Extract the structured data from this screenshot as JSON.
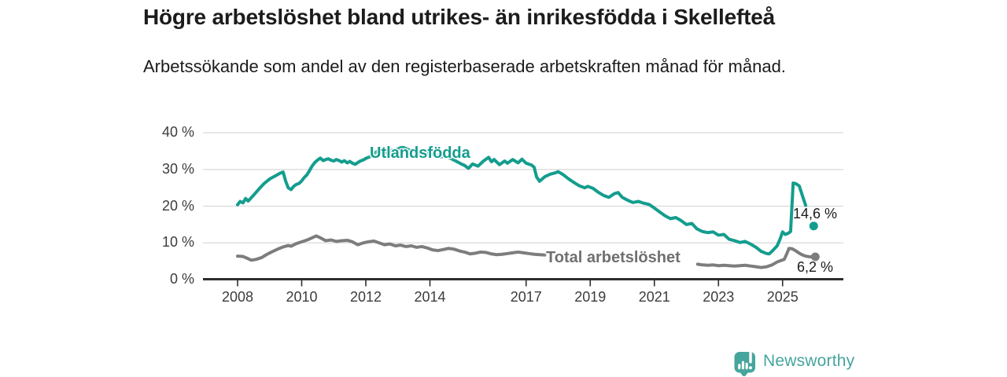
{
  "header": {
    "title": "Högre arbetslöshet bland utrikes- än inrikesfödda i Skellefteå",
    "subtitle": "Arbetssökande som andel av den registerbaserade arbetskraften månad för månad."
  },
  "chart_data": {
    "type": "line",
    "unit": "%",
    "ylim": [
      0,
      40
    ],
    "xlim": [
      2006.9,
      2026.9
    ],
    "grid": "horizontal",
    "legend_position": "inline-labels",
    "y_ticks": [
      {
        "value": 0,
        "label": "0 %"
      },
      {
        "value": 10,
        "label": "10 %"
      },
      {
        "value": 20,
        "label": "20 %"
      },
      {
        "value": 30,
        "label": "30 %"
      },
      {
        "value": 40,
        "label": "40 %"
      }
    ],
    "x_ticks": [
      {
        "value": 2008,
        "label": "2008"
      },
      {
        "value": 2010,
        "label": "2010"
      },
      {
        "value": 2012,
        "label": "2012"
      },
      {
        "value": 2014,
        "label": "2014"
      },
      {
        "value": 2017,
        "label": "2017"
      },
      {
        "value": 2019,
        "label": "2019"
      },
      {
        "value": 2021,
        "label": "2021"
      },
      {
        "value": 2023,
        "label": "2023"
      },
      {
        "value": 2025,
        "label": "2025"
      }
    ],
    "series": [
      {
        "name": "Utlandsfödda",
        "color": "#149d8e",
        "label_color": "#149d8e",
        "end_label": "14,6 %",
        "end_dot": {
          "x": 2025.97,
          "value": 14.6
        },
        "segments": [
          [
            [
              2008.0,
              20.4
            ],
            [
              2008.08,
              21.3
            ],
            [
              2008.17,
              20.9
            ],
            [
              2008.25,
              22.1
            ],
            [
              2008.33,
              21.4
            ],
            [
              2008.5,
              23.0
            ],
            [
              2008.67,
              24.7
            ],
            [
              2008.83,
              26.2
            ],
            [
              2009.0,
              27.4
            ],
            [
              2009.17,
              28.2
            ],
            [
              2009.33,
              29.0
            ],
            [
              2009.42,
              29.3
            ],
            [
              2009.5,
              26.8
            ],
            [
              2009.58,
              25.0
            ],
            [
              2009.67,
              24.5
            ],
            [
              2009.75,
              25.4
            ],
            [
              2009.83,
              25.9
            ],
            [
              2009.92,
              26.2
            ],
            [
              2010.0,
              26.9
            ],
            [
              2010.08,
              27.8
            ],
            [
              2010.17,
              28.6
            ],
            [
              2010.25,
              29.8
            ],
            [
              2010.33,
              31.0
            ],
            [
              2010.42,
              32.0
            ],
            [
              2010.5,
              32.6
            ],
            [
              2010.58,
              33.1
            ],
            [
              2010.67,
              32.4
            ],
            [
              2010.75,
              32.7
            ],
            [
              2010.83,
              32.9
            ],
            [
              2010.92,
              32.5
            ],
            [
              2011.0,
              32.3
            ],
            [
              2011.08,
              32.7
            ],
            [
              2011.17,
              32.4
            ],
            [
              2011.25,
              32.0
            ],
            [
              2011.33,
              32.4
            ],
            [
              2011.42,
              31.8
            ],
            [
              2011.5,
              32.2
            ],
            [
              2011.58,
              31.7
            ],
            [
              2011.67,
              31.4
            ],
            [
              2011.75,
              31.9
            ],
            [
              2011.83,
              32.3
            ],
            [
              2011.92,
              32.6
            ],
            [
              2012.0,
              33.0
            ],
            [
              2012.08,
              33.3
            ],
            [
              2012.17,
              33.6
            ],
            [
              2012.25,
              34.2
            ],
            [
              2012.33,
              34.8
            ],
            [
              2012.42,
              35.2
            ],
            [
              2012.5,
              34.6
            ],
            [
              2012.58,
              34.9
            ],
            [
              2012.67,
              34.4
            ],
            [
              2012.75,
              34.8
            ],
            [
              2012.83,
              35.3
            ],
            [
              2012.92,
              35.0
            ],
            [
              2013.0,
              35.6
            ],
            [
              2013.08,
              35.9
            ],
            [
              2013.17,
              36.0
            ],
            [
              2013.25,
              35.7
            ],
            [
              2013.33,
              35.4
            ],
            [
              2013.5,
              35.0
            ],
            [
              2013.67,
              34.4
            ],
            [
              2013.83,
              34.8
            ],
            [
              2014.0,
              34.3
            ],
            [
              2014.17,
              33.9
            ],
            [
              2014.33,
              33.4
            ],
            [
              2014.5,
              33.7
            ],
            [
              2014.67,
              32.9
            ],
            [
              2014.83,
              32.2
            ],
            [
              2015.0,
              31.4
            ],
            [
              2015.08,
              31.1
            ],
            [
              2015.2,
              30.3
            ],
            [
              2015.33,
              31.5
            ],
            [
              2015.5,
              30.9
            ],
            [
              2015.67,
              32.3
            ],
            [
              2015.83,
              33.3
            ],
            [
              2015.92,
              32.1
            ],
            [
              2016.0,
              32.7
            ],
            [
              2016.17,
              31.3
            ],
            [
              2016.33,
              32.3
            ],
            [
              2016.42,
              31.7
            ],
            [
              2016.58,
              32.7
            ],
            [
              2016.75,
              31.8
            ],
            [
              2016.87,
              32.8
            ],
            [
              2017.0,
              31.7
            ],
            [
              2017.17,
              31.2
            ],
            [
              2017.25,
              30.6
            ],
            [
              2017.33,
              27.9
            ],
            [
              2017.42,
              26.8
            ],
            [
              2017.58,
              28.0
            ],
            [
              2017.75,
              28.7
            ],
            [
              2017.92,
              29.1
            ],
            [
              2018.0,
              29.4
            ],
            [
              2018.17,
              28.5
            ],
            [
              2018.33,
              27.4
            ],
            [
              2018.5,
              26.4
            ],
            [
              2018.67,
              25.5
            ],
            [
              2018.83,
              25.0
            ],
            [
              2018.92,
              25.4
            ],
            [
              2019.08,
              24.9
            ],
            [
              2019.25,
              23.8
            ],
            [
              2019.42,
              22.9
            ],
            [
              2019.58,
              22.4
            ],
            [
              2019.75,
              23.4
            ],
            [
              2019.87,
              23.7
            ],
            [
              2020.0,
              22.4
            ],
            [
              2020.17,
              21.6
            ],
            [
              2020.33,
              21.0
            ],
            [
              2020.5,
              21.3
            ],
            [
              2020.67,
              20.8
            ],
            [
              2020.83,
              20.5
            ],
            [
              2021.0,
              19.5
            ],
            [
              2021.17,
              18.4
            ],
            [
              2021.33,
              17.4
            ],
            [
              2021.5,
              16.6
            ],
            [
              2021.67,
              16.9
            ],
            [
              2021.83,
              16.1
            ],
            [
              2022.0,
              15.0
            ],
            [
              2022.17,
              15.3
            ],
            [
              2022.33,
              13.8
            ],
            [
              2022.5,
              13.1
            ],
            [
              2022.67,
              12.8
            ],
            [
              2022.83,
              13.0
            ],
            [
              2023.0,
              12.1
            ],
            [
              2023.17,
              12.3
            ],
            [
              2023.33,
              11.0
            ],
            [
              2023.5,
              10.6
            ],
            [
              2023.67,
              10.1
            ],
            [
              2023.83,
              10.4
            ],
            [
              2024.0,
              9.7
            ],
            [
              2024.17,
              8.8
            ],
            [
              2024.33,
              7.7
            ],
            [
              2024.5,
              7.1
            ],
            [
              2024.58,
              7.0
            ],
            [
              2024.67,
              7.7
            ],
            [
              2024.83,
              9.2
            ],
            [
              2024.92,
              11.0
            ],
            [
              2025.0,
              13.0
            ],
            [
              2025.08,
              12.3
            ],
            [
              2025.17,
              12.6
            ],
            [
              2025.25,
              13.1
            ],
            [
              2025.33,
              26.3
            ],
            [
              2025.42,
              26.1
            ],
            [
              2025.52,
              25.5
            ],
            [
              2025.62,
              22.8
            ],
            [
              2025.72,
              20.2
            ]
          ]
        ]
      },
      {
        "name": "Total arbetslöshet",
        "color": "#7d7d7d",
        "label_color": "#6f6f6f",
        "end_label": "6,2 %",
        "end_dot": {
          "x": 2026.02,
          "value": 6.2
        },
        "segments": [
          [
            [
              2008.0,
              6.4
            ],
            [
              2008.17,
              6.3
            ],
            [
              2008.33,
              5.7
            ],
            [
              2008.42,
              5.3
            ],
            [
              2008.58,
              5.5
            ],
            [
              2008.75,
              6.0
            ],
            [
              2008.92,
              6.9
            ],
            [
              2009.08,
              7.6
            ],
            [
              2009.25,
              8.3
            ],
            [
              2009.42,
              8.9
            ],
            [
              2009.58,
              9.3
            ],
            [
              2009.67,
              9.1
            ],
            [
              2009.83,
              9.8
            ],
            [
              2010.0,
              10.3
            ],
            [
              2010.17,
              10.8
            ],
            [
              2010.33,
              11.4
            ],
            [
              2010.45,
              11.9
            ],
            [
              2010.58,
              11.4
            ],
            [
              2010.75,
              10.6
            ],
            [
              2010.92,
              10.8
            ],
            [
              2011.08,
              10.4
            ],
            [
              2011.25,
              10.6
            ],
            [
              2011.42,
              10.7
            ],
            [
              2011.58,
              10.3
            ],
            [
              2011.75,
              9.5
            ],
            [
              2011.92,
              10.0
            ],
            [
              2012.08,
              10.3
            ],
            [
              2012.25,
              10.5
            ],
            [
              2012.42,
              10.0
            ],
            [
              2012.58,
              9.5
            ],
            [
              2012.75,
              9.7
            ],
            [
              2012.92,
              9.2
            ],
            [
              2013.08,
              9.4
            ],
            [
              2013.25,
              9.0
            ],
            [
              2013.42,
              9.2
            ],
            [
              2013.58,
              8.8
            ],
            [
              2013.75,
              9.0
            ],
            [
              2013.92,
              8.6
            ],
            [
              2014.08,
              8.1
            ],
            [
              2014.25,
              7.9
            ],
            [
              2014.42,
              8.2
            ],
            [
              2014.58,
              8.5
            ],
            [
              2014.75,
              8.3
            ],
            [
              2014.92,
              7.8
            ],
            [
              2015.08,
              7.5
            ],
            [
              2015.25,
              7.0
            ],
            [
              2015.42,
              7.2
            ],
            [
              2015.58,
              7.5
            ],
            [
              2015.75,
              7.4
            ],
            [
              2015.92,
              7.0
            ],
            [
              2016.08,
              6.8
            ],
            [
              2016.25,
              6.9
            ],
            [
              2016.42,
              7.1
            ],
            [
              2016.58,
              7.3
            ],
            [
              2016.75,
              7.5
            ],
            [
              2016.92,
              7.3
            ],
            [
              2017.08,
              7.1
            ],
            [
              2017.25,
              6.9
            ],
            [
              2017.42,
              6.8
            ],
            [
              2017.58,
              6.7
            ]
          ],
          [
            [
              2022.35,
              4.2
            ],
            [
              2022.5,
              4.0
            ],
            [
              2022.67,
              3.9
            ],
            [
              2022.83,
              4.0
            ],
            [
              2023.0,
              3.8
            ],
            [
              2023.17,
              3.9
            ],
            [
              2023.33,
              3.8
            ],
            [
              2023.5,
              3.7
            ],
            [
              2023.67,
              3.8
            ],
            [
              2023.83,
              3.9
            ],
            [
              2024.0,
              3.7
            ],
            [
              2024.17,
              3.5
            ],
            [
              2024.33,
              3.3
            ],
            [
              2024.5,
              3.5
            ],
            [
              2024.67,
              4.0
            ],
            [
              2024.83,
              4.8
            ],
            [
              2024.95,
              5.2
            ],
            [
              2025.05,
              5.5
            ],
            [
              2025.13,
              7.0
            ],
            [
              2025.2,
              8.5
            ],
            [
              2025.3,
              8.4
            ],
            [
              2025.4,
              7.9
            ],
            [
              2025.5,
              7.3
            ],
            [
              2025.6,
              6.8
            ],
            [
              2025.72,
              6.4
            ],
            [
              2025.85,
              6.2
            ],
            [
              2026.02,
              6.2
            ]
          ]
        ]
      }
    ],
    "colors": {
      "grid": "#d9d9d9",
      "axis": "#2e2e2e",
      "tick_text": "#3c3c3c"
    }
  },
  "logo": {
    "text": "Newsworthy",
    "color": "#46a59d",
    "icon": "bar-chart-speech-bubble"
  }
}
